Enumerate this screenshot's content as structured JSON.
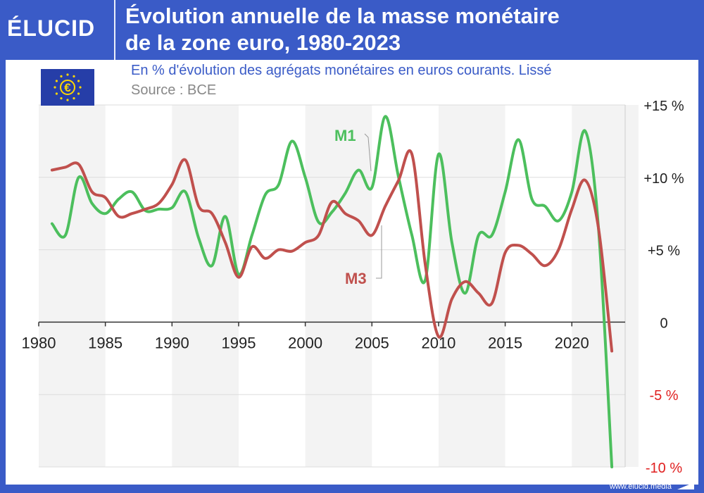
{
  "header": {
    "logo": "ÉLUCID",
    "title_line1": "Évolution annuelle de la masse monétaire",
    "title_line2": "de la zone euro, 1980-2023"
  },
  "subtitle": "En % d'évolution des agrégats monétaires en euros courants. Lissé",
  "source": "Source : BCE",
  "footer": {
    "url": "www.elucid.media"
  },
  "colors": {
    "brand": "#3a5bc7",
    "m1": "#4cbf5d",
    "m3": "#c0504d",
    "negative_tick": "#e02020"
  },
  "chart_data": {
    "type": "line",
    "title": "Évolution annuelle de la masse monétaire de la zone euro, 1980-2023",
    "subtitle": "En % d'évolution des agrégats monétaires en euros courants. Lissé",
    "xlim": [
      1980,
      2024
    ],
    "ylim": [
      -10,
      15
    ],
    "x_ticks": [
      1980,
      1985,
      1990,
      1995,
      2000,
      2005,
      2010,
      2015,
      2020
    ],
    "y_ticks": [
      {
        "value": 15,
        "label": "+15 %"
      },
      {
        "value": 10,
        "label": "+10 %"
      },
      {
        "value": 5,
        "label": "+5 %"
      },
      {
        "value": 0,
        "label": "0"
      },
      {
        "value": -5,
        "label": "-5 %"
      },
      {
        "value": -10,
        "label": "-10 %"
      }
    ],
    "grid": true,
    "legend_placement": "inline labels",
    "series": [
      {
        "name": "M1",
        "x": [
          1981,
          1982,
          1983,
          1984,
          1985,
          1986,
          1987,
          1988,
          1989,
          1990,
          1991,
          1992,
          1993,
          1994,
          1995,
          1996,
          1997,
          1998,
          1999,
          2000,
          2001,
          2002,
          2003,
          2004,
          2005,
          2006,
          2007,
          2008,
          2009,
          2010,
          2011,
          2012,
          2013,
          2014,
          2015,
          2016,
          2017,
          2018,
          2019,
          2020,
          2021,
          2022,
          2023
        ],
        "values": [
          6.8,
          6.0,
          10.0,
          8.2,
          7.5,
          8.5,
          9.0,
          7.7,
          7.8,
          7.9,
          9.0,
          5.8,
          3.9,
          7.3,
          3.3,
          6.0,
          8.8,
          9.5,
          12.5,
          10.0,
          6.9,
          7.6,
          8.9,
          10.5,
          9.3,
          14.2,
          10.0,
          6.0,
          2.9,
          11.6,
          5.5,
          2.0,
          6.0,
          6.0,
          9.0,
          12.6,
          8.5,
          8.0,
          7.0,
          9.0,
          13.2,
          6.5,
          -10.0
        ]
      },
      {
        "name": "M3",
        "x": [
          1981,
          1982,
          1983,
          1984,
          1985,
          1986,
          1987,
          1988,
          1989,
          1990,
          1991,
          1992,
          1993,
          1994,
          1995,
          1996,
          1997,
          1998,
          1999,
          2000,
          2001,
          2002,
          2003,
          2004,
          2005,
          2006,
          2007,
          2008,
          2009,
          2010,
          2011,
          2012,
          2013,
          2014,
          2015,
          2016,
          2017,
          2018,
          2019,
          2020,
          2021,
          2022,
          2023
        ],
        "values": [
          10.5,
          10.7,
          10.9,
          9.0,
          8.6,
          7.3,
          7.5,
          7.8,
          8.2,
          9.5,
          11.2,
          8.0,
          7.5,
          5.5,
          3.1,
          5.2,
          4.4,
          5.0,
          4.9,
          5.5,
          6.0,
          8.3,
          7.5,
          7.0,
          6.0,
          8.0,
          9.8,
          11.6,
          4.0,
          -1.0,
          1.6,
          2.8,
          2.0,
          1.3,
          4.8,
          5.3,
          4.7,
          3.9,
          5.0,
          7.8,
          9.8,
          6.5,
          -2.0
        ]
      }
    ]
  }
}
